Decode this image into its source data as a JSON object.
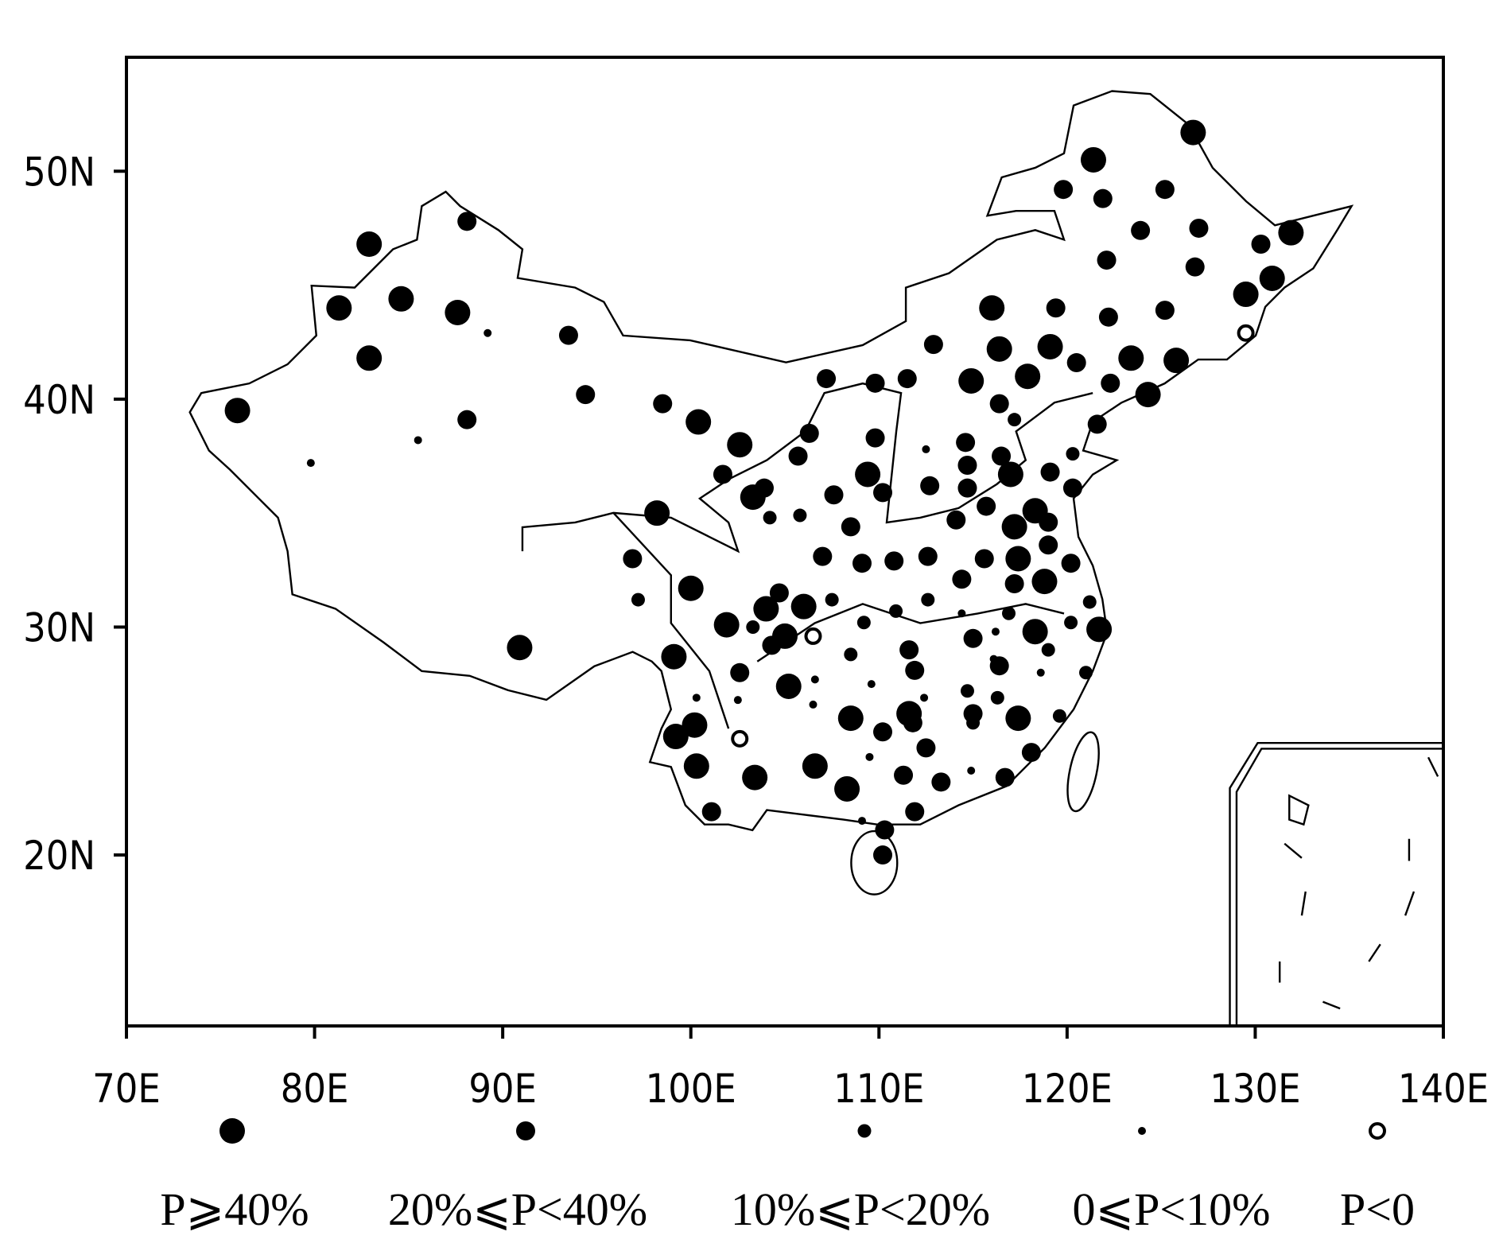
{
  "chart_data": {
    "type": "scatter",
    "xlim": [
      70,
      140
    ],
    "ylim": [
      12.5,
      55
    ],
    "xticks": [
      {
        "value": 70,
        "label": "70E"
      },
      {
        "value": 80,
        "label": "80E"
      },
      {
        "value": 90,
        "label": "90E"
      },
      {
        "value": 100,
        "label": "100E"
      },
      {
        "value": 110,
        "label": "110E"
      },
      {
        "value": 120,
        "label": "120E"
      },
      {
        "value": 130,
        "label": "130E"
      },
      {
        "value": 140,
        "label": "140E"
      }
    ],
    "yticks": [
      {
        "value": 20,
        "label": "20N"
      },
      {
        "value": 30,
        "label": "30N"
      },
      {
        "value": 40,
        "label": "40N"
      },
      {
        "value": 50,
        "label": "50N"
      }
    ],
    "series": [
      {
        "name": "P⩾40%",
        "color": "#000000",
        "filled": true,
        "x": [
          126.7,
          121.4,
          129.5,
          130.9,
          131.9,
          82.9,
          81.3,
          84.6,
          87.6,
          82.9,
          75.9,
          100.4,
          102.6,
          116.0,
          116.4,
          119.1,
          123.4,
          114.9,
          117.9,
          125.8,
          124.3,
          109.4,
          117.0,
          118.3,
          117.2,
          117.4,
          100.0,
          101.9,
          104.0,
          106.0,
          105.0,
          99.1,
          99.2,
          100.2,
          100.3,
          103.4,
          106.6,
          108.3,
          108.5,
          111.6,
          117.4,
          105.2,
          118.3,
          118.8,
          103.3,
          90.9,
          121.7,
          98.2
        ],
        "y": [
          51.7,
          50.5,
          44.6,
          45.3,
          47.3,
          46.8,
          44.0,
          44.4,
          43.8,
          41.8,
          39.5,
          39.0,
          38.0,
          44.0,
          42.2,
          42.3,
          41.8,
          40.8,
          41.0,
          41.7,
          40.2,
          36.7,
          36.7,
          35.1,
          34.4,
          33.0,
          31.7,
          30.1,
          30.8,
          30.9,
          29.6,
          28.7,
          25.2,
          25.7,
          23.9,
          23.4,
          23.9,
          22.9,
          26.0,
          26.2,
          26.0,
          27.4,
          29.8,
          32.0,
          35.7,
          29.1,
          29.9,
          35.0
        ]
      },
      {
        "name": "20%⩽P<40%",
        "color": "#000000",
        "filled": true,
        "x": [
          119.8,
          121.9,
          125.2,
          123.9,
          127.0,
          122.1,
          126.8,
          130.3,
          119.4,
          122.2,
          125.2,
          112.9,
          120.5,
          122.3,
          109.8,
          111.5,
          107.2,
          121.6,
          116.4,
          109.8,
          106.3,
          105.7,
          114.6,
          114.7,
          116.5,
          119.1,
          120.3,
          110.2,
          112.7,
          114.7,
          115.7,
          114.1,
          107.6,
          103.9,
          101.7,
          108.5,
          119.0,
          119.0,
          120.2,
          115.6,
          112.6,
          110.8,
          109.1,
          107.0,
          96.9,
          114.4,
          117.2,
          104.7,
          104.3,
          111.6,
          115.0,
          116.4,
          102.6,
          111.9,
          111.8,
          115.0,
          112.5,
          111.3,
          113.3,
          116.7,
          118.1,
          111.9,
          110.3,
          110.2,
          101.1,
          110.2,
          94.4,
          93.5,
          98.5,
          88.1,
          88.1
        ],
        "y": [
          49.2,
          48.8,
          49.2,
          47.4,
          47.5,
          46.1,
          45.8,
          46.8,
          44.0,
          43.6,
          43.9,
          42.4,
          41.6,
          40.7,
          40.7,
          40.9,
          40.9,
          38.9,
          39.8,
          38.3,
          38.5,
          37.5,
          38.1,
          37.1,
          37.5,
          36.8,
          36.1,
          35.9,
          36.2,
          36.1,
          35.3,
          34.7,
          35.8,
          36.1,
          36.7,
          34.4,
          34.6,
          33.6,
          32.8,
          33.0,
          33.1,
          32.9,
          32.8,
          33.1,
          33.0,
          32.1,
          31.9,
          31.5,
          29.2,
          29.0,
          29.5,
          28.3,
          28.0,
          28.1,
          25.8,
          26.2,
          24.7,
          23.5,
          23.2,
          23.4,
          24.5,
          21.9,
          21.1,
          20.0,
          21.9,
          25.4,
          40.2,
          42.8,
          39.8,
          39.1,
          47.8
        ]
      },
      {
        "name": "10%⩽P<20%",
        "color": "#000000",
        "filled": true,
        "x": [
          117.2,
          103.3,
          120.3,
          121.2,
          120.2,
          119.0,
          121.0,
          119.6,
          116.3,
          115.0,
          114.7,
          108.5,
          109.2,
          110.9,
          116.9,
          104.2,
          105.8,
          107.5,
          97.2,
          112.6
        ],
        "y": [
          39.1,
          30.0,
          37.6,
          31.1,
          30.2,
          29.0,
          28.0,
          26.1,
          26.9,
          25.8,
          27.2,
          28.8,
          30.2,
          30.7,
          30.6,
          34.8,
          34.9,
          31.2,
          31.2,
          31.2
        ]
      },
      {
        "name": "0⩽P<10%",
        "color": "#000000",
        "filled": true,
        "x": [
          112.5,
          89.2,
          85.5,
          79.8,
          106.6,
          106.5,
          109.6,
          112.4,
          109.5,
          114.9,
          116.1,
          118.6,
          116.2,
          114.4,
          109.1,
          102.5,
          100.3
        ],
        "y": [
          37.8,
          42.9,
          38.2,
          37.2,
          27.7,
          26.6,
          27.5,
          26.9,
          24.3,
          23.7,
          28.6,
          28.0,
          29.8,
          30.6,
          21.5,
          26.8,
          26.9
        ]
      },
      {
        "name": "P<0",
        "color": "#000000",
        "filled": false,
        "x": [
          129.5,
          106.5,
          102.6
        ],
        "y": [
          42.9,
          29.6,
          25.1
        ]
      }
    ]
  }
}
